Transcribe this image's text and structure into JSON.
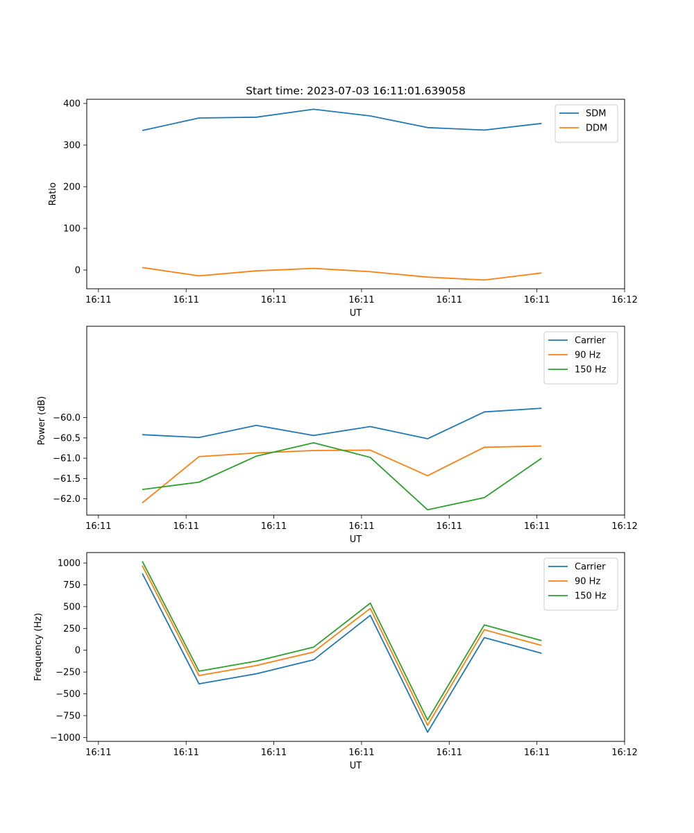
{
  "title": "Start time: 2023-07-03 16:11:01.639058",
  "chart_data": [
    {
      "type": "line",
      "title": "Start time: 2023-07-03 16:11:01.639058",
      "xlabel": "UT",
      "ylabel": "Ratio",
      "xlim": [
        -0.2,
        9.0
      ],
      "ylim": [
        -45,
        410
      ],
      "x_tick_values": [
        0,
        1.5,
        3,
        4.5,
        6,
        7.5,
        9
      ],
      "x_tick_labels": [
        "16:11",
        "16:11",
        "16:11",
        "16:11",
        "16:11",
        "16:11",
        "16:12"
      ],
      "y_ticks": [
        0,
        100,
        200,
        300,
        400
      ],
      "y_tick_labels": [
        "0",
        "100",
        "200",
        "300",
        "400"
      ],
      "legend": "top-right",
      "x": [
        0.75,
        1.72,
        2.7,
        3.68,
        4.65,
        5.63,
        6.6,
        7.58
      ],
      "series": [
        {
          "name": "SDM",
          "color": "#1f77b4",
          "values": [
            335,
            365,
            367,
            386,
            370,
            342,
            336,
            352
          ]
        },
        {
          "name": "DDM",
          "color": "#ff7f0e",
          "values": [
            6,
            -14,
            -2,
            4,
            -4,
            -17,
            -24,
            -7
          ]
        }
      ]
    },
    {
      "type": "line",
      "title": "",
      "xlabel": "UT",
      "ylabel": "Power (dB)",
      "xlim": [
        -0.2,
        9.0
      ],
      "ylim": [
        -62.4,
        -57.75
      ],
      "x_tick_values": [
        0,
        1.5,
        3,
        4.5,
        6,
        7.5,
        9
      ],
      "x_tick_labels": [
        "16:11",
        "16:11",
        "16:11",
        "16:11",
        "16:11",
        "16:11",
        "16:12"
      ],
      "y_ticks": [
        -62.0,
        -61.5,
        -61.0,
        -60.5,
        -60.0
      ],
      "y_tick_labels": [
        "−62.0",
        "−61.5",
        "−61.0",
        "−60.5",
        "−60.0"
      ],
      "legend": "top-right",
      "x": [
        0.75,
        1.72,
        2.7,
        3.68,
        4.65,
        5.63,
        6.6,
        7.58
      ],
      "series": [
        {
          "name": "Carrier",
          "color": "#1f77b4",
          "values": [
            -60.42,
            -60.49,
            -60.19,
            -60.44,
            -60.22,
            -60.52,
            -59.86,
            -59.77
          ]
        },
        {
          "name": "90 Hz",
          "color": "#ff7f0e",
          "values": [
            -62.1,
            -60.96,
            -60.87,
            -60.81,
            -60.8,
            -61.43,
            -60.73,
            -60.7
          ]
        },
        {
          "name": "150 Hz",
          "color": "#2ca02c",
          "values": [
            -61.77,
            -61.59,
            -60.95,
            -60.62,
            -60.98,
            -62.27,
            -61.97,
            -61.0
          ]
        }
      ]
    },
    {
      "type": "line",
      "title": "",
      "xlabel": "UT",
      "ylabel": "Frequency (Hz)",
      "xlim": [
        -0.2,
        9.0
      ],
      "ylim": [
        -1045,
        1120
      ],
      "x_tick_values": [
        0,
        1.5,
        3,
        4.5,
        6,
        7.5,
        9
      ],
      "x_tick_labels": [
        "16:11",
        "16:11",
        "16:11",
        "16:11",
        "16:11",
        "16:11",
        "16:12"
      ],
      "y_ticks": [
        -1000,
        -750,
        -500,
        -250,
        0,
        250,
        500,
        750,
        1000
      ],
      "y_tick_labels": [
        "−1000",
        "−750",
        "−500",
        "−250",
        "0",
        "250",
        "500",
        "750",
        "1000"
      ],
      "legend": "top-right",
      "x": [
        0.75,
        1.72,
        2.7,
        3.68,
        4.65,
        5.63,
        6.6,
        7.58
      ],
      "series": [
        {
          "name": "Carrier",
          "color": "#1f77b4",
          "values": [
            880,
            -385,
            -270,
            -110,
            400,
            -940,
            145,
            -35
          ]
        },
        {
          "name": "90 Hz",
          "color": "#ff7f0e",
          "values": [
            970,
            -290,
            -175,
            -20,
            480,
            -860,
            235,
            55
          ]
        },
        {
          "name": "150 Hz",
          "color": "#2ca02c",
          "values": [
            1020,
            -240,
            -125,
            35,
            540,
            -800,
            290,
            110
          ]
        }
      ]
    }
  ]
}
